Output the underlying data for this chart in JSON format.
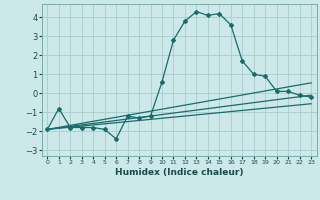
{
  "xlabel": "Humidex (Indice chaleur)",
  "bg_color": "#cce8e8",
  "grid_color": "#aacccc",
  "line_color": "#1a6b6b",
  "xlim": [
    -0.5,
    23.5
  ],
  "ylim": [
    -3.3,
    4.7
  ],
  "xticks": [
    0,
    1,
    2,
    3,
    4,
    5,
    6,
    7,
    8,
    9,
    10,
    11,
    12,
    13,
    14,
    15,
    16,
    17,
    18,
    19,
    20,
    21,
    22,
    23
  ],
  "yticks": [
    -3,
    -2,
    -1,
    0,
    1,
    2,
    3,
    4
  ],
  "main_x": [
    0,
    1,
    2,
    3,
    4,
    5,
    6,
    7,
    8,
    9,
    10,
    11,
    12,
    13,
    14,
    15,
    16,
    17,
    18,
    19,
    20,
    21,
    22,
    23
  ],
  "main_y": [
    -1.9,
    -0.8,
    -1.8,
    -1.8,
    -1.8,
    -1.9,
    -2.4,
    -1.2,
    -1.3,
    -1.2,
    0.6,
    2.8,
    3.8,
    4.3,
    4.1,
    4.2,
    3.6,
    1.7,
    1.0,
    0.9,
    0.1,
    0.1,
    -0.1,
    -0.2
  ],
  "trend1_x": [
    0,
    23
  ],
  "trend1_y": [
    -1.9,
    0.55
  ],
  "trend2_x": [
    0,
    23
  ],
  "trend2_y": [
    -1.9,
    -0.1
  ],
  "trend3_x": [
    0,
    23
  ],
  "trend3_y": [
    -1.9,
    -0.55
  ]
}
